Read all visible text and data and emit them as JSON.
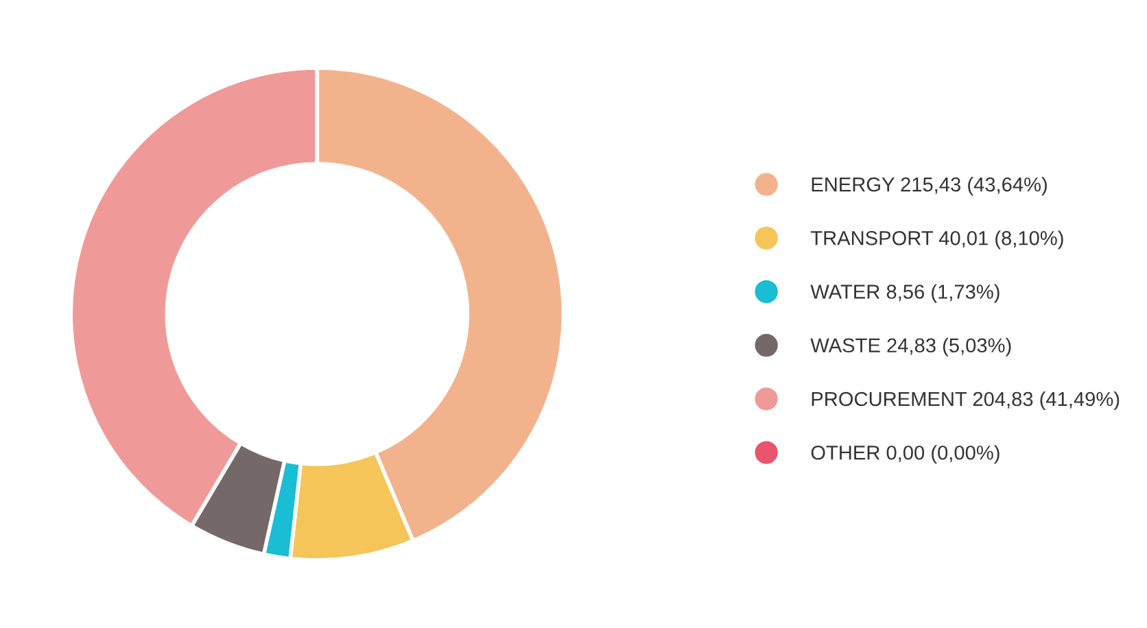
{
  "chart_data": {
    "type": "donut",
    "categories": [
      "ENERGY 215,43 (43,64%)",
      "TRANSPORT 40,01 (8,10%)",
      "WATER 8,56 (1,73%)",
      "WASTE 24,83 (5,03%)",
      "PROCUREMENT 204,83 (41,49%)",
      "OTHER 0,00 (0,00%)"
    ],
    "values": [
      215.43,
      40.01,
      8.56,
      24.83,
      204.83,
      0.0
    ],
    "colors": [
      "#f2b38c",
      "#f5c55a",
      "#19bdd4",
      "#756868",
      "#ef9a98",
      "#e9546f"
    ],
    "legend": "right"
  }
}
